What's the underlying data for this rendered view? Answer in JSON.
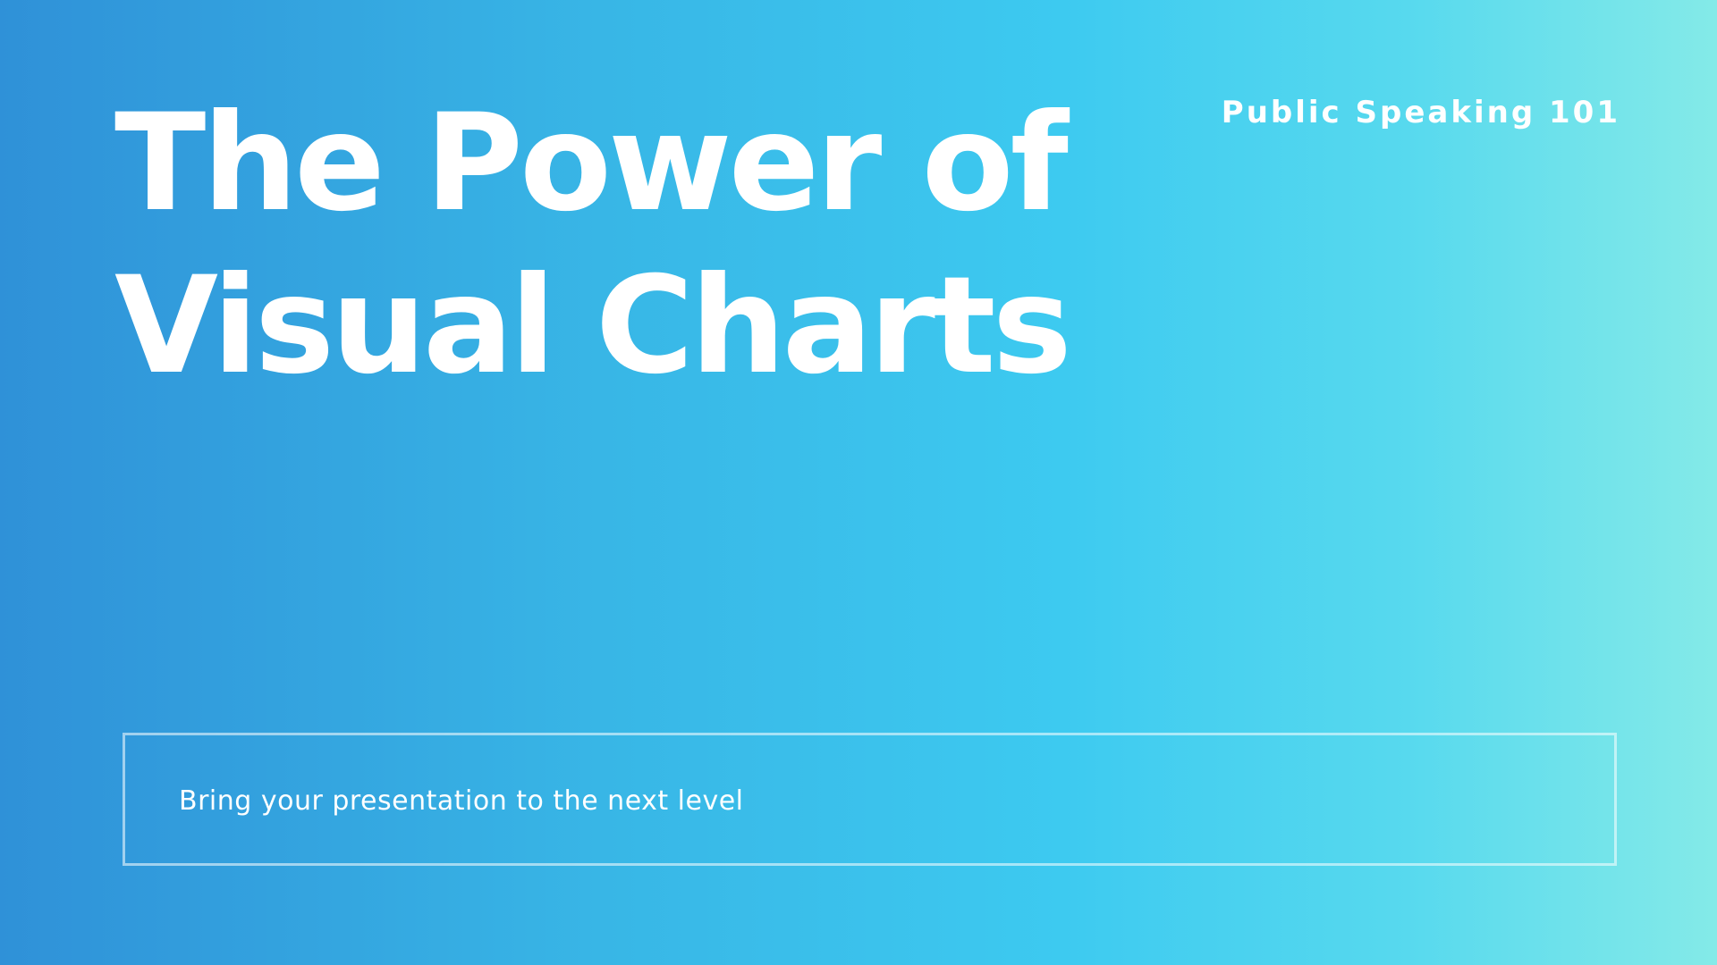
{
  "slide": {
    "title_line_1": "The Power of",
    "title_line_2": "Visual Charts",
    "course_tag": "Public Speaking 101",
    "tagline": "Bring your presentation to the next level"
  },
  "colors": {
    "gradient_start": "#2f91d8",
    "gradient_mid": "#3dcaf0",
    "gradient_end": "#84eae8",
    "text": "#ffffff"
  }
}
